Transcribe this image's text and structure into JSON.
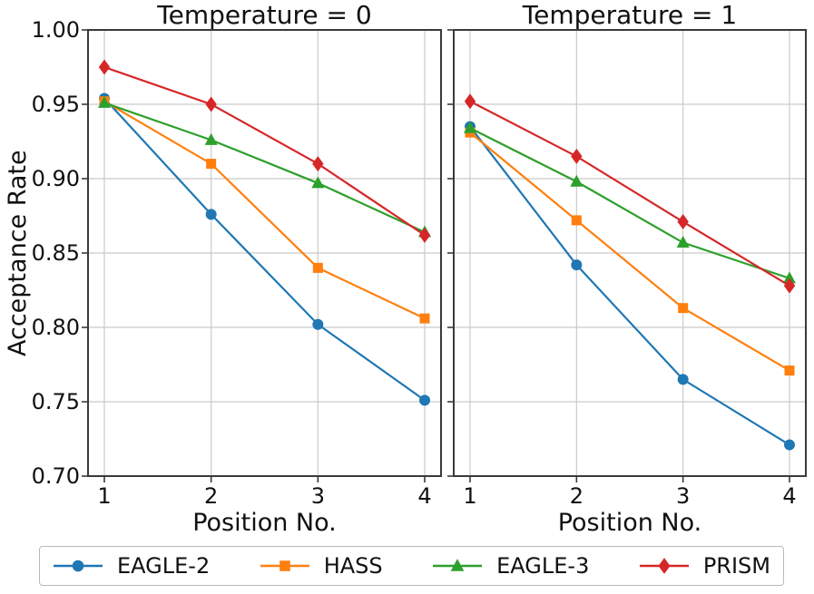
{
  "chart_data": {
    "type": "line",
    "x": [
      1,
      2,
      3,
      4
    ],
    "xlabel": "Position No.",
    "ylabel": "Acceptance Rate",
    "ylim": [
      0.7,
      1.0
    ],
    "yticks": [
      1.0,
      0.95,
      0.9,
      0.85,
      0.8,
      0.75,
      0.7
    ],
    "grid": true,
    "legend_position": "bottom",
    "legend": [
      "EAGLE-2",
      "HASS",
      "EAGLE-3",
      "PRISM"
    ],
    "colors": {
      "EAGLE-2": "#1f77b4",
      "HASS": "#ff7f0e",
      "EAGLE-3": "#2ca02c",
      "PRISM": "#d62728"
    },
    "markers": {
      "EAGLE-2": "circle",
      "HASS": "square",
      "EAGLE-3": "triangle",
      "PRISM": "diamond"
    },
    "panels": [
      {
        "title": "Temperature = 0",
        "series": [
          {
            "name": "EAGLE-2",
            "color": "#1f77b4",
            "marker": "circle",
            "values": [
              0.954,
              0.876,
              0.802,
              0.751
            ]
          },
          {
            "name": "HASS",
            "color": "#ff7f0e",
            "marker": "square",
            "values": [
              0.952,
              0.91,
              0.84,
              0.806
            ]
          },
          {
            "name": "EAGLE-3",
            "color": "#2ca02c",
            "marker": "triangle",
            "values": [
              0.951,
              0.926,
              0.897,
              0.864
            ]
          },
          {
            "name": "PRISM",
            "color": "#d62728",
            "marker": "diamond",
            "values": [
              0.975,
              0.95,
              0.91,
              0.862
            ]
          }
        ]
      },
      {
        "title": "Temperature = 1",
        "series": [
          {
            "name": "EAGLE-2",
            "color": "#1f77b4",
            "marker": "circle",
            "values": [
              0.935,
              0.842,
              0.765,
              0.721
            ]
          },
          {
            "name": "HASS",
            "color": "#ff7f0e",
            "marker": "square",
            "values": [
              0.931,
              0.872,
              0.813,
              0.771
            ]
          },
          {
            "name": "EAGLE-3",
            "color": "#2ca02c",
            "marker": "triangle",
            "values": [
              0.934,
              0.898,
              0.857,
              0.833
            ]
          },
          {
            "name": "PRISM",
            "color": "#d62728",
            "marker": "diamond",
            "values": [
              0.952,
              0.915,
              0.871,
              0.828
            ]
          }
        ]
      }
    ]
  }
}
